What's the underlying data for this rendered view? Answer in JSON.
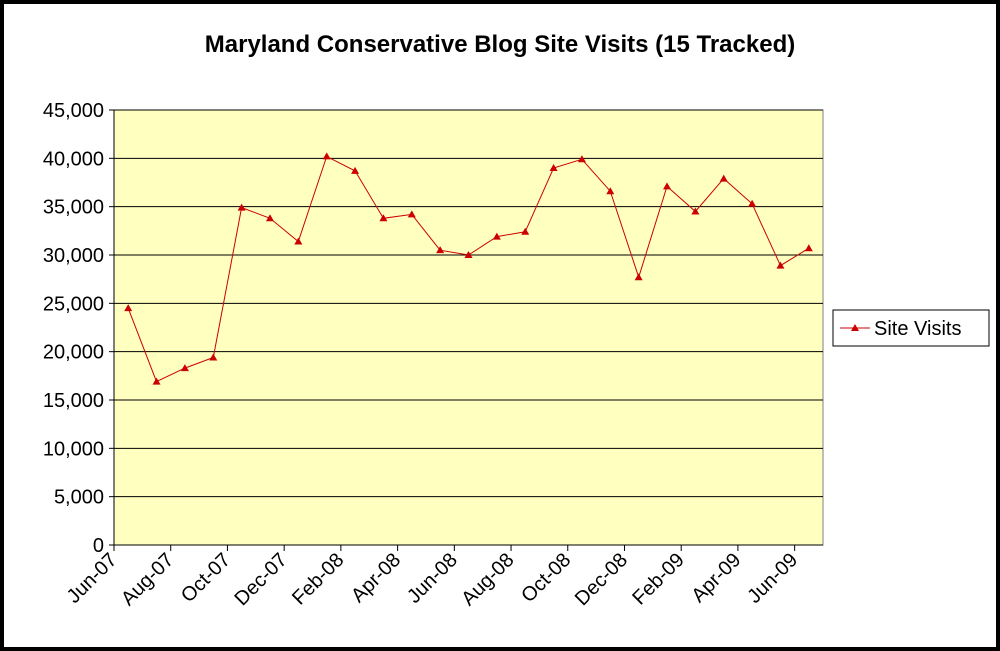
{
  "chart_data": {
    "type": "line",
    "title": "Maryland Conservative Blog Site Visits (15 Tracked)",
    "xlabel": "",
    "ylabel": "",
    "ylim": [
      0,
      45000
    ],
    "yticks": [
      "0",
      "5,000",
      "10,000",
      "15,000",
      "20,000",
      "25,000",
      "30,000",
      "35,000",
      "40,000",
      "45,000"
    ],
    "xtick_labels": [
      "Jun-07",
      "Aug-07",
      "Oct-07",
      "Dec-07",
      "Feb-08",
      "Apr-08",
      "Jun-08",
      "Aug-08",
      "Oct-08",
      "Dec-08",
      "Feb-09",
      "Apr-09",
      "Jun-09"
    ],
    "grid": true,
    "plot_background": "#ffffc0",
    "line_color": "#cc0000",
    "marker": "triangle",
    "legend_position": "right",
    "x": [
      "Jun-07",
      "Jul-07",
      "Aug-07",
      "Sep-07",
      "Oct-07",
      "Nov-07",
      "Dec-07",
      "Jan-08",
      "Feb-08",
      "Mar-08",
      "Apr-08",
      "May-08",
      "Jun-08",
      "Jul-08",
      "Aug-08",
      "Sep-08",
      "Oct-08",
      "Nov-08",
      "Dec-08",
      "Jan-09",
      "Feb-09",
      "Mar-09",
      "Apr-09",
      "May-09",
      "Jun-09"
    ],
    "series": [
      {
        "name": "Site Visits",
        "values": [
          24500,
          16900,
          18300,
          19400,
          34900,
          33800,
          31400,
          40200,
          38700,
          33800,
          34200,
          30500,
          30000,
          31900,
          32400,
          39000,
          39900,
          36600,
          27700,
          37100,
          34500,
          37900,
          35300,
          28900,
          30700
        ]
      }
    ]
  }
}
